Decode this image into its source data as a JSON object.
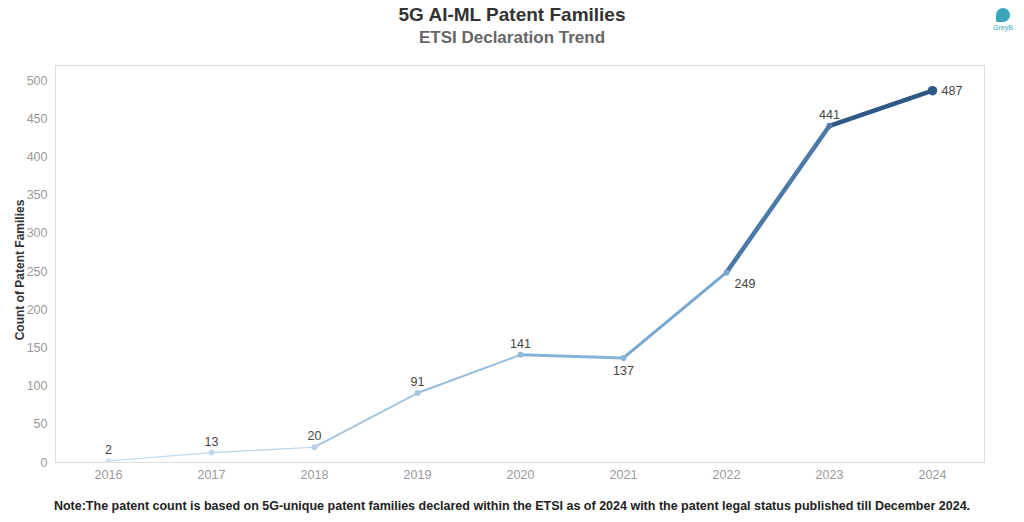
{
  "chart_data": {
    "type": "line",
    "title": "5G AI-ML Patent Families",
    "subtitle": "ETSI Declaration Trend",
    "brand": "GreyB",
    "ylabel": "Count of Patent Families",
    "note": "Note:The patent count is based on 5G-unique patent families declared within the ETSI as of 2024 with the patent legal status published till December 2024.",
    "categories": [
      "2016",
      "2017",
      "2018",
      "2019",
      "2020",
      "2021",
      "2022",
      "2023",
      "2024"
    ],
    "values": [
      2,
      13,
      20,
      91,
      141,
      137,
      249,
      441,
      487
    ],
    "colors": [
      "#cfe1f0",
      "#c2d9ed",
      "#b5d1e8",
      "#a2c5e0",
      "#93bcdb",
      "#86b3d6",
      "#78a8d0",
      "#4b79a9",
      "#2f5786"
    ],
    "ylim": [
      0,
      520
    ],
    "yticks": [
      0,
      50,
      100,
      150,
      200,
      250,
      300,
      350,
      400,
      450,
      500
    ],
    "grid": false,
    "data_labels": true
  }
}
